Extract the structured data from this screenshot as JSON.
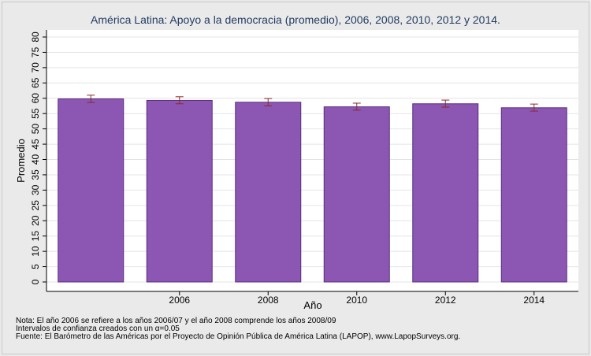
{
  "chart_data": {
    "type": "bar",
    "title": "América Latina: Apoyo a la democracia (promedio), 2006, 2008, 2010, 2012 y 2014.",
    "xlabel": "Año",
    "ylabel": "Promedio",
    "ylim": [
      0,
      80
    ],
    "yticks": [
      0,
      5,
      10,
      15,
      20,
      25,
      30,
      35,
      40,
      45,
      50,
      55,
      60,
      65,
      70,
      75,
      80
    ],
    "categories": [
      "",
      "2006",
      "2008",
      "2010",
      "2012",
      "2014"
    ],
    "values": [
      59.8,
      59.3,
      58.7,
      57.2,
      58.2,
      56.9
    ],
    "ci_low": [
      58.6,
      58.2,
      57.5,
      56.1,
      57.1,
      55.8
    ],
    "ci_high": [
      61.0,
      60.5,
      59.9,
      58.4,
      59.4,
      58.1
    ],
    "bar_color": "#8b57b3",
    "bar_edge_color": "#5a2d82",
    "errorbar_color": "#8b2a2a",
    "grid": true,
    "notes": [
      "Nota: El año 2006 se refiere a los años 2006/07 y el año 2008 comprende los años 2008/09",
      "Intervalos de confianza creados con un α=0.05",
      "Fuente: El Barómetro de las Américas por el Proyecto de Opinión Pública de América Latina (LAPOP), www.LapopSurveys.org."
    ]
  }
}
